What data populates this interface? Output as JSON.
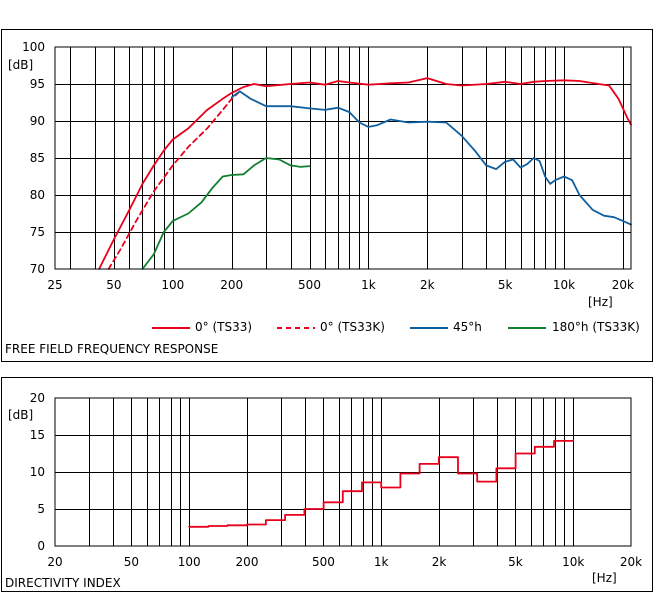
{
  "chart_data": [
    {
      "type": "line",
      "title": "FREE FIELD FREQUENCY RESPONSE",
      "xlabel": "[Hz]",
      "ylabel": "[dB]",
      "xscale": "log",
      "xlim": [
        25,
        22000
      ],
      "ylim": [
        70,
        100
      ],
      "grid": true,
      "legend_position": "bottom",
      "xticks": [
        25,
        50,
        100,
        200,
        500,
        1000,
        2000,
        5000,
        10000,
        20000
      ],
      "xtick_labels": [
        "25",
        "50",
        "100",
        "200",
        "500",
        "1k",
        "2k",
        "5k",
        "10k",
        "20k"
      ],
      "yticks": [
        70,
        75,
        80,
        85,
        90,
        95,
        100
      ],
      "ytick_labels": [
        "70",
        "75",
        "80",
        "85",
        "90",
        "95",
        "100"
      ],
      "series": [
        {
          "name": "0° (TS33)",
          "color": "#e8001c",
          "dash": "solid",
          "points": [
            [
              42,
              70
            ],
            [
              50,
              74
            ],
            [
              60,
              78
            ],
            [
              70,
              81.5
            ],
            [
              80,
              84
            ],
            [
              90,
              86
            ],
            [
              100,
              87.5
            ],
            [
              120,
              89
            ],
            [
              150,
              91.5
            ],
            [
              180,
              93
            ],
            [
              200,
              93.8
            ],
            [
              230,
              94.6
            ],
            [
              260,
              95
            ],
            [
              300,
              94.7
            ],
            [
              400,
              95
            ],
            [
              500,
              95.2
            ],
            [
              600,
              94.9
            ],
            [
              700,
              95.4
            ],
            [
              800,
              95.2
            ],
            [
              1000,
              94.9
            ],
            [
              1300,
              95.1
            ],
            [
              1600,
              95.2
            ],
            [
              2000,
              95.8
            ],
            [
              2500,
              95
            ],
            [
              3000,
              94.8
            ],
            [
              4000,
              95
            ],
            [
              5000,
              95.3
            ],
            [
              6000,
              95
            ],
            [
              7000,
              95.3
            ],
            [
              8000,
              95.4
            ],
            [
              10000,
              95.5
            ],
            [
              12000,
              95.4
            ],
            [
              15000,
              95
            ],
            [
              17000,
              94.8
            ],
            [
              19000,
              93
            ],
            [
              21000,
              90.5
            ],
            [
              22000,
              89.5
            ]
          ]
        },
        {
          "name": "0° (TS33K)",
          "color": "#e8001c",
          "dash": "dashed",
          "points": [
            [
              47,
              70
            ],
            [
              55,
              73
            ],
            [
              65,
              76.5
            ],
            [
              80,
              80.5
            ],
            [
              100,
              84
            ],
            [
              120,
              86.5
            ],
            [
              150,
              89
            ],
            [
              180,
              91.5
            ],
            [
              200,
              93
            ],
            [
              220,
              94
            ]
          ]
        },
        {
          "name": "45°h",
          "color": "#1060a0",
          "dash": "solid",
          "points": [
            [
              200,
              93.2
            ],
            [
              220,
              94
            ],
            [
              250,
              93
            ],
            [
              300,
              92
            ],
            [
              400,
              92
            ],
            [
              500,
              91.7
            ],
            [
              600,
              91.5
            ],
            [
              700,
              91.8
            ],
            [
              800,
              91.2
            ],
            [
              900,
              89.8
            ],
            [
              1000,
              89.2
            ],
            [
              1100,
              89.4
            ],
            [
              1300,
              90.2
            ],
            [
              1600,
              89.8
            ],
            [
              2000,
              89.9
            ],
            [
              2500,
              89.8
            ],
            [
              3000,
              88
            ],
            [
              3500,
              86
            ],
            [
              4000,
              84
            ],
            [
              4500,
              83.5
            ],
            [
              5000,
              84.5
            ],
            [
              5500,
              84.8
            ],
            [
              6000,
              83.7
            ],
            [
              6500,
              84.2
            ],
            [
              7000,
              85
            ],
            [
              7500,
              84.6
            ],
            [
              8000,
              82.5
            ],
            [
              8500,
              81.5
            ],
            [
              9000,
              82
            ],
            [
              10000,
              82.5
            ],
            [
              11000,
              82
            ],
            [
              12000,
              80
            ],
            [
              14000,
              78
            ],
            [
              16000,
              77.2
            ],
            [
              18000,
              77
            ],
            [
              20000,
              76.5
            ],
            [
              22000,
              76
            ]
          ]
        },
        {
          "name": "180°h (TS33K)",
          "color": "#108030",
          "dash": "solid",
          "points": [
            [
              70,
              70
            ],
            [
              80,
              72
            ],
            [
              90,
              75
            ],
            [
              100,
              76.5
            ],
            [
              120,
              77.5
            ],
            [
              140,
              79
            ],
            [
              160,
              81
            ],
            [
              180,
              82.5
            ],
            [
              200,
              82.7
            ],
            [
              230,
              82.8
            ],
            [
              260,
              84
            ],
            [
              300,
              85
            ],
            [
              350,
              84.8
            ],
            [
              400,
              84
            ],
            [
              450,
              83.8
            ],
            [
              500,
              83.9
            ]
          ]
        }
      ]
    },
    {
      "type": "line",
      "title": "DIRECTIVITY INDEX",
      "xlabel": "[Hz]",
      "ylabel": "[dB]",
      "xscale": "log",
      "xlim": [
        20,
        20000
      ],
      "ylim": [
        0,
        20
      ],
      "grid": true,
      "xticks": [
        20,
        50,
        100,
        200,
        500,
        1000,
        2000,
        5000,
        10000,
        20000
      ],
      "xtick_labels": [
        "20",
        "50",
        "100",
        "200",
        "500",
        "1k",
        "2k",
        "5k",
        "10k",
        "20k"
      ],
      "yticks": [
        0,
        5,
        10,
        15,
        20
      ],
      "ytick_labels": [
        "0",
        "5",
        "10",
        "15",
        "20"
      ],
      "series": [
        {
          "color": "#e8001c",
          "step": true,
          "edges": [
            100,
            126,
            158,
            200,
            251,
            316,
            398,
            501,
            631,
            794,
            1000,
            1259,
            1585,
            1995,
            2512,
            3162,
            3981,
            5012,
            6310,
            7943,
            10000
          ],
          "values": [
            2.6,
            2.7,
            2.8,
            2.9,
            3.5,
            4.2,
            5.0,
            5.9,
            7.4,
            8.6,
            7.9,
            9.8,
            11.1,
            12.0,
            9.8,
            8.7,
            10.5,
            12.5,
            13.4,
            14.2
          ]
        }
      ]
    }
  ]
}
